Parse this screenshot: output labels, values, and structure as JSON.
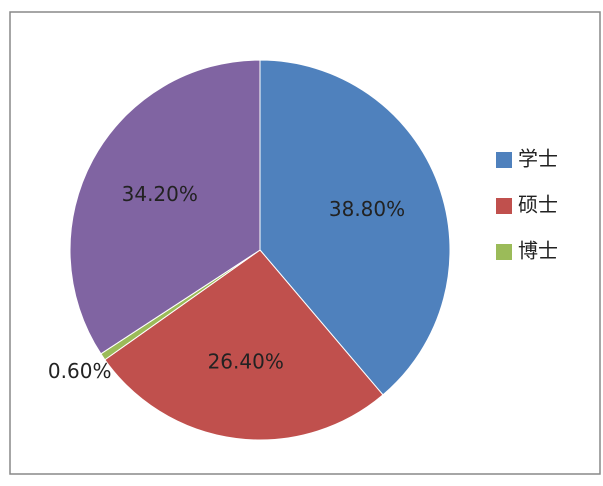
{
  "chart_data": {
    "type": "pie",
    "categories": [
      "学士",
      "硕士",
      "博士",
      null
    ],
    "values": [
      38.8,
      26.4,
      0.6,
      34.2
    ],
    "value_labels": [
      "38.80%",
      "26.40%",
      "0.60%",
      "34.20%"
    ],
    "colors": [
      "#4f81bd",
      "#c0504d",
      "#9bbb59",
      "#8064a2"
    ],
    "legend": "right"
  }
}
